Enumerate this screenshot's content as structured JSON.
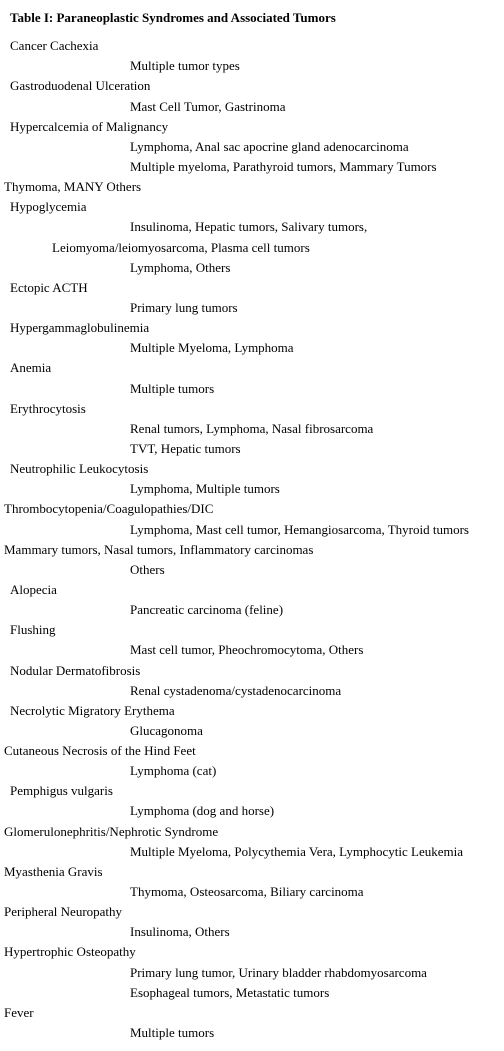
{
  "title": "Table I: Paraneoplastic Syndromes and Associated Tumors",
  "syndromes": [
    {
      "name": "Cancer Cachexia",
      "lines": [
        {
          "indent": "i2",
          "text": "Multiple tumor types"
        }
      ]
    },
    {
      "name": "Gastroduodenal Ulceration",
      "lines": [
        {
          "indent": "i2",
          "text": "Mast Cell Tumor, Gastrinoma"
        }
      ]
    },
    {
      "name": "Hypercalcemia of Malignancy",
      "lines": [
        {
          "indent": "i2",
          "text": "Lymphoma, Anal sac apocrine gland adenocarcinoma"
        },
        {
          "indent": "i2",
          "text": "Multiple myeloma, Parathyroid tumors, Mammary Tumors"
        },
        {
          "indent": "i0b",
          "text": "Thymoma, MANY Others"
        }
      ]
    },
    {
      "name": "Hypoglycemia",
      "lines": [
        {
          "indent": "i2",
          "text": "Insulinoma, Hepatic tumors, Salivary tumors,"
        },
        {
          "indent": "i1",
          "text": "Leiomyoma/leiomyosarcoma, Plasma cell tumors"
        },
        {
          "indent": "i2",
          "text": "Lymphoma, Others"
        }
      ]
    },
    {
      "name": "Ectopic ACTH",
      "lines": [
        {
          "indent": "i2",
          "text": "Primary lung tumors"
        }
      ]
    },
    {
      "name": "Hypergammaglobulinemia",
      "lines": [
        {
          "indent": "i2",
          "text": "Multiple Myeloma, Lymphoma"
        }
      ]
    },
    {
      "name": "Anemia",
      "lines": [
        {
          "indent": "i2",
          "text": "Multiple tumors"
        }
      ]
    },
    {
      "name": "Erythrocytosis",
      "lines": [
        {
          "indent": "i2",
          "text": "Renal tumors, Lymphoma, Nasal fibrosarcoma"
        },
        {
          "indent": "i2",
          "text": "TVT, Hepatic tumors"
        }
      ]
    },
    {
      "name": "Neutrophilic Leukocytosis",
      "lines": [
        {
          "indent": "i2",
          "text": "Lymphoma, Multiple tumors"
        }
      ]
    },
    {
      "name": "Thrombocytopenia/Coagulopathies/DIC",
      "name_indent": "i0b",
      "lines": [
        {
          "indent": "i2",
          "text": "Lymphoma, Mast cell tumor, Hemangiosarcoma, Thyroid tumors"
        },
        {
          "indent": "i0b",
          "text": "Mammary tumors, Nasal tumors, Inflammatory carcinomas"
        },
        {
          "indent": "i2",
          "text": "Others"
        }
      ]
    },
    {
      "name": "Alopecia",
      "lines": [
        {
          "indent": "i2",
          "text": "Pancreatic carcinoma (feline)"
        }
      ]
    },
    {
      "name": "Flushing",
      "lines": [
        {
          "indent": "i2",
          "text": "Mast cell tumor, Pheochromocytoma, Others"
        }
      ]
    },
    {
      "name": "Nodular Dermatofibrosis",
      "lines": [
        {
          "indent": "i2",
          "text": "Renal cystadenoma/cystadenocarcinoma"
        }
      ]
    },
    {
      "name": "Necrolytic Migratory Erythema",
      "lines": [
        {
          "indent": "i2",
          "text": "Glucagonoma"
        }
      ]
    },
    {
      "name": "Cutaneous Necrosis of the Hind Feet",
      "name_indent": "i0b",
      "lines": [
        {
          "indent": "i2",
          "text": "Lymphoma (cat)"
        }
      ]
    },
    {
      "name": "Pemphigus vulgaris",
      "lines": [
        {
          "indent": "i2",
          "text": "Lymphoma (dog and horse)"
        }
      ]
    },
    {
      "name": "Glomerulonephritis/Nephrotic Syndrome",
      "name_indent": "i0b",
      "lines": [
        {
          "indent": "i2",
          "text": "Multiple Myeloma, Polycythemia Vera, Lymphocytic Leukemia"
        }
      ]
    },
    {
      "name": "Myasthenia Gravis",
      "name_indent": "i0b",
      "lines": [
        {
          "indent": "i2",
          "text": "Thymoma, Osteosarcoma, Biliary carcinoma"
        }
      ]
    },
    {
      "name": "Peripheral Neuropathy",
      "name_indent": "i0b",
      "lines": [
        {
          "indent": "i2",
          "text": "Insulinoma, Others"
        }
      ]
    },
    {
      "name": "Hypertrophic Osteopathy",
      "name_indent": "i0b",
      "lines": [
        {
          "indent": "i2",
          "text": "Primary lung tumor, Urinary bladder rhabdomyosarcoma"
        },
        {
          "indent": "i2",
          "text": "Esophageal tumors, Metastatic tumors"
        }
      ]
    },
    {
      "name": "Fever",
      "name_indent": "i0b",
      "lines": [
        {
          "indent": "i2",
          "text": "Multiple tumors"
        }
      ]
    }
  ]
}
